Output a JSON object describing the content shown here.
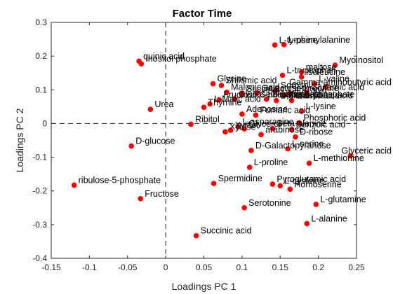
{
  "chart_data": {
    "type": "scatter",
    "title": "Factor Time",
    "xlabel": "Loadings PC 1",
    "ylabel": "Loadings PC 2",
    "xlim": [
      -0.15,
      0.25
    ],
    "ylim": [
      -0.4,
      0.3
    ],
    "xticks": [
      -0.15,
      -0.1,
      -0.05,
      0,
      0.05,
      0.1,
      0.15,
      0.2,
      0.25
    ],
    "xtick_labels": [
      "-0.15",
      "-0.1",
      "-0.05",
      "0",
      "0.05",
      "0.1",
      "0.15",
      "0.2",
      "0.25"
    ],
    "yticks": [
      -0.4,
      -0.3,
      -0.2,
      -0.1,
      0,
      0.1,
      0.2,
      0.3
    ],
    "ytick_labels": [
      "-0.4",
      "-0.3",
      "-0.2",
      "-0.1",
      "0",
      "0.1",
      "0.2",
      "0.3"
    ],
    "reference_lines": {
      "x": 0,
      "y": 0,
      "style": "dashed"
    },
    "marker_color": "#ff0000",
    "grid": false,
    "points": [
      {
        "label": "L-phenylalanine",
        "x": 0.155,
        "y": 0.234
      },
      {
        "label": "L-tyrosine",
        "x": 0.143,
        "y": 0.233
      },
      {
        "label": "Myoinositol",
        "x": 0.222,
        "y": 0.173
      },
      {
        "label": "quinic acid",
        "x": -0.035,
        "y": 0.185
      },
      {
        "label": "Inositol phosphate",
        "x": -0.032,
        "y": 0.177
      },
      {
        "label": "maltose",
        "x": 0.178,
        "y": 0.153
      },
      {
        "label": "L-tryptophan",
        "x": 0.153,
        "y": 0.143
      },
      {
        "label": "Isoleucine",
        "x": 0.178,
        "y": 0.138
      },
      {
        "label": "Glycine",
        "x": 0.062,
        "y": 0.118
      },
      {
        "label": "Shikimic acid",
        "x": 0.073,
        "y": 0.113
      },
      {
        "label": "L-valine",
        "x": 0.195,
        "y": 0.118
      },
      {
        "label": "Gamma-aminobutyric acid",
        "x": 0.21,
        "y": 0.108
      },
      {
        "label": "Malonic acid",
        "x": 0.08,
        "y": 0.093
      },
      {
        "label": "Glutamic acid",
        "x": 0.185,
        "y": 0.093
      },
      {
        "label": "Sorbitol",
        "x": 0.145,
        "y": 0.098
      },
      {
        "label": "Galactose",
        "x": 0.12,
        "y": 0.09
      },
      {
        "label": "Succinate",
        "x": 0.1,
        "y": 0.088
      },
      {
        "label": "L-threonine",
        "x": 0.163,
        "y": 0.09
      },
      {
        "label": "Fructose 6-phosphate",
        "x": 0.07,
        "y": 0.07
      },
      {
        "label": "Glucose 6-phosphate",
        "x": 0.09,
        "y": 0.073
      },
      {
        "label": "Citric acid",
        "x": 0.155,
        "y": 0.085
      },
      {
        "label": "Glucose-1-phosphate",
        "x": 0.132,
        "y": 0.072
      },
      {
        "label": "L-glutamic acid",
        "x": 0.145,
        "y": 0.068
      },
      {
        "label": "L-aspartic acid",
        "x": 0.165,
        "y": 0.068
      },
      {
        "label": "Thymine",
        "x": 0.05,
        "y": 0.048
      },
      {
        "label": "Urea",
        "x": -0.02,
        "y": 0.042
      },
      {
        "label": "L-Malic acid",
        "x": 0.058,
        "y": 0.058
      },
      {
        "label": "L-lysine",
        "x": 0.178,
        "y": 0.036
      },
      {
        "label": "Adenosine",
        "x": 0.1,
        "y": 0.028
      },
      {
        "label": "Fumaric acid",
        "x": 0.118,
        "y": 0.025
      },
      {
        "label": "Phosphoric acid",
        "x": 0.175,
        "y": 0.002
      },
      {
        "label": "Ribitol",
        "x": 0.033,
        "y": -0.002
      },
      {
        "label": "L-asparagine",
        "x": 0.095,
        "y": -0.01
      },
      {
        "label": "Beta-alanine",
        "x": 0.14,
        "y": -0.015
      },
      {
        "label": "Benzoic acid",
        "x": 0.165,
        "y": -0.018
      },
      {
        "label": "Xylitol",
        "x": 0.085,
        "y": -0.02
      },
      {
        "label": "Xylose",
        "x": 0.078,
        "y": -0.025
      },
      {
        "label": "Glycerol",
        "x": 0.103,
        "y": -0.016
      },
      {
        "label": "arabinose",
        "x": 0.125,
        "y": -0.033
      },
      {
        "label": "D-ribose",
        "x": 0.17,
        "y": -0.04
      },
      {
        "label": "Glyceric acid",
        "x": 0.242,
        "y": -0.096
      },
      {
        "label": "D-glucose",
        "x": -0.045,
        "y": -0.067
      },
      {
        "label": "L-serine",
        "x": 0.16,
        "y": -0.075
      },
      {
        "label": "D-Galactopyranose",
        "x": 0.112,
        "y": -0.08
      },
      {
        "label": "L-methionine",
        "x": 0.188,
        "y": -0.118
      },
      {
        "label": "L-proline",
        "x": 0.11,
        "y": -0.13
      },
      {
        "label": "Pyroglutamic acid",
        "x": 0.14,
        "y": -0.18
      },
      {
        "label": "L-cysteine",
        "x": 0.15,
        "y": -0.185
      },
      {
        "label": "ribulose-5-phosphate",
        "x": -0.12,
        "y": -0.183
      },
      {
        "label": "Spermidine",
        "x": 0.063,
        "y": -0.178
      },
      {
        "label": "Homoserine",
        "x": 0.163,
        "y": -0.195
      },
      {
        "label": "Fructose",
        "x": -0.033,
        "y": -0.223
      },
      {
        "label": "L-glutamine",
        "x": 0.197,
        "y": -0.24
      },
      {
        "label": "Serotonine",
        "x": 0.103,
        "y": -0.25
      },
      {
        "label": "L-alanine",
        "x": 0.185,
        "y": -0.297
      },
      {
        "label": "Succinic acid",
        "x": 0.04,
        "y": -0.333
      }
    ]
  }
}
